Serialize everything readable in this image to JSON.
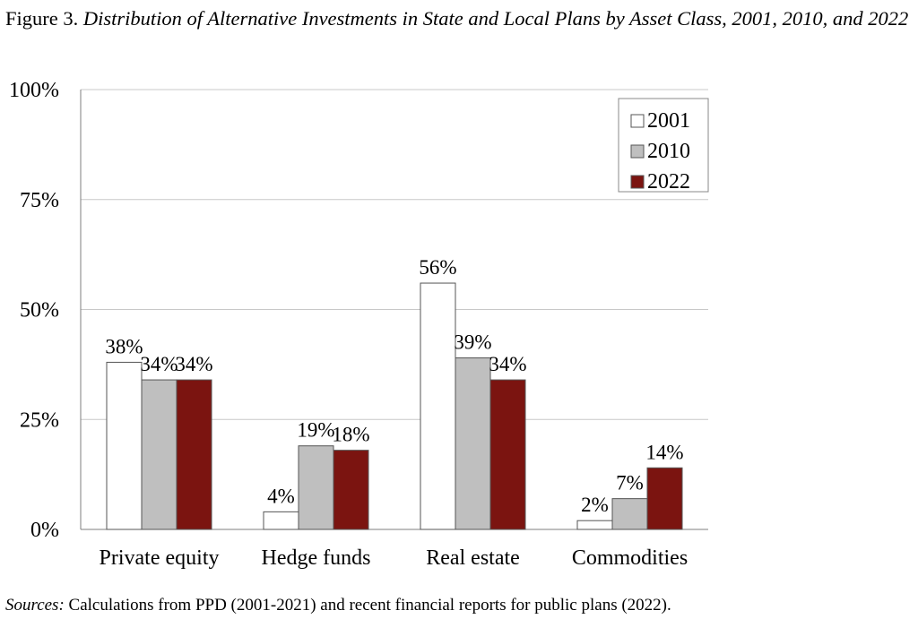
{
  "figure": {
    "label": "Figure 3.",
    "title": "Distribution of Alternative Investments in State and Local Plans by Asset Class, 2001, 2010, and 2022"
  },
  "sources": {
    "label": "Sources:",
    "text": "Calculations from PPD (2001-2021) and recent financial reports for public plans (2022)."
  },
  "chart_data": {
    "type": "bar",
    "title": "Distribution of Alternative Investments in State and Local Plans by Asset Class, 2001, 2010, and 2022",
    "categories": [
      "Private equity",
      "Hedge funds",
      "Real estate",
      "Commodities"
    ],
    "series": [
      {
        "name": "2001",
        "values": [
          38,
          4,
          56,
          2
        ],
        "labels": [
          "38%",
          "4%",
          "56%",
          "2%"
        ],
        "color": "#ffffff"
      },
      {
        "name": "2010",
        "values": [
          34,
          19,
          39,
          7
        ],
        "labels": [
          "34%",
          "19%",
          "39%",
          "7%"
        ],
        "color": "#bfbfbf"
      },
      {
        "name": "2022",
        "values": [
          34,
          18,
          34,
          14
        ],
        "labels": [
          "34%",
          "18%",
          "34%",
          "14%"
        ],
        "color": "#7b1410"
      }
    ],
    "xlabel": "",
    "ylabel": "",
    "ylim": [
      0,
      100
    ],
    "yticks": [
      0,
      25,
      50,
      75,
      100
    ],
    "ytick_labels": [
      "0%",
      "25%",
      "50%",
      "75%",
      "100%"
    ],
    "grid": true,
    "legend_position": "top-right"
  }
}
